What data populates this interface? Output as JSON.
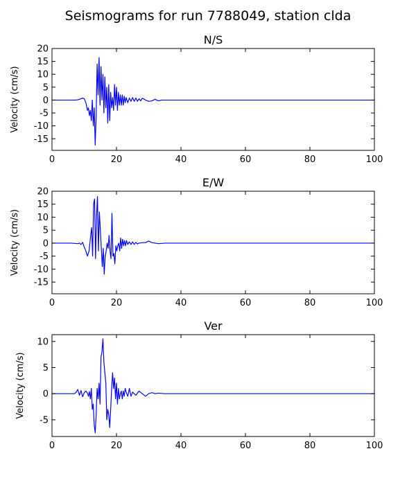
{
  "figure": {
    "suptitle": "Seismograms for run 7788049, station clda",
    "line_color": "#0000ff"
  },
  "chart_data": [
    {
      "type": "line",
      "title": "N/S",
      "xlabel": "",
      "ylabel": "Velocity (cm/s)",
      "xlim": [
        0,
        100
      ],
      "ylim": [
        -19.5,
        20
      ],
      "xticks": [
        0,
        20,
        40,
        60,
        80,
        100
      ],
      "yticks": [
        -15,
        -10,
        -5,
        0,
        5,
        10,
        15,
        20
      ],
      "grid": false,
      "series": [
        {
          "color": "#0000ff",
          "x": [
            0,
            7,
            8,
            9,
            9.5,
            10,
            10.5,
            11,
            11.3,
            11.6,
            11.9,
            12.2,
            12.5,
            12.8,
            13.1,
            13.4,
            13.7,
            14.0,
            14.3,
            14.6,
            14.9,
            15.2,
            15.5,
            15.8,
            16.1,
            16.4,
            16.7,
            17.0,
            17.3,
            17.6,
            17.9,
            18.2,
            18.5,
            18.8,
            19.1,
            19.4,
            19.7,
            20.0,
            20.3,
            20.6,
            20.9,
            21.2,
            21.5,
            21.8,
            22.1,
            22.4,
            22.7,
            23.0,
            23.5,
            24,
            24.5,
            25,
            25.5,
            26,
            26.5,
            27,
            27.5,
            28,
            28.5,
            29,
            30,
            31,
            32,
            33,
            34,
            35,
            37,
            40,
            50,
            60,
            70,
            80,
            90,
            100
          ],
          "y": [
            0,
            0,
            0.1,
            0.5,
            0.8,
            0.5,
            -1,
            -4,
            -3,
            -6,
            -4,
            -8,
            0,
            -10,
            -3,
            -17.5,
            -6,
            14,
            2,
            16.5,
            -2,
            13,
            0,
            10,
            -5,
            9,
            -3,
            5,
            -9,
            6,
            -8,
            3,
            -3,
            1,
            -4,
            6,
            -2,
            5,
            -4,
            3,
            -2,
            2,
            -2,
            2,
            -2,
            1.5,
            -1,
            1,
            -1,
            0.8,
            -0.5,
            1,
            -0.5,
            0.8,
            -0.5,
            0.5,
            -0.3,
            0.7,
            0.4,
            0,
            -0.5,
            -0.3,
            0.3,
            -0.3,
            0,
            0,
            0,
            0,
            0,
            0,
            0,
            0,
            0,
            0
          ]
        }
      ]
    },
    {
      "type": "line",
      "title": "E/W",
      "xlabel": "",
      "ylabel": "Velocity (cm/s)",
      "xlim": [
        0,
        100
      ],
      "ylim": [
        -19.5,
        20
      ],
      "xticks": [
        0,
        20,
        40,
        60,
        80,
        100
      ],
      "yticks": [
        -15,
        -10,
        -5,
        0,
        5,
        10,
        15,
        20
      ],
      "grid": false,
      "series": [
        {
          "color": "#0000ff",
          "x": [
            0,
            6,
            7,
            8,
            8.5,
            9,
            9.5,
            10,
            10.5,
            11,
            11.5,
            12,
            12.3,
            12.6,
            12.9,
            13.2,
            13.5,
            13.8,
            14.1,
            14.4,
            14.7,
            15.0,
            15.3,
            15.6,
            15.9,
            16.2,
            16.5,
            16.8,
            17.1,
            17.4,
            17.7,
            18.0,
            18.3,
            18.6,
            18.9,
            19.2,
            19.5,
            19.8,
            20.1,
            20.4,
            20.7,
            21.0,
            21.3,
            21.6,
            21.9,
            22.2,
            22.5,
            22.8,
            23.1,
            23.5,
            24,
            24.5,
            25,
            25.5,
            26,
            26.5,
            27,
            28,
            29,
            30,
            31,
            32,
            33,
            35,
            40,
            50,
            60,
            70,
            80,
            90,
            100
          ],
          "y": [
            0,
            0,
            -0.1,
            -0.2,
            0,
            -0.5,
            0.3,
            -1.5,
            -3,
            -5,
            -3,
            3,
            6,
            -5,
            15,
            17,
            -6,
            10,
            18,
            -3,
            12,
            5,
            -2,
            -9,
            -2,
            -12,
            -5,
            -3,
            0,
            -2,
            3,
            -3,
            -6,
            11.5,
            -5,
            -4,
            -8,
            -1,
            -3,
            -1,
            0,
            -3,
            2,
            -2,
            1.5,
            -1,
            1,
            -1,
            1,
            -0.5,
            0.5,
            -0.5,
            0.5,
            -0.5,
            0.3,
            -0.3,
            0,
            0.2,
            0.2,
            0.8,
            0.2,
            0,
            -0.2,
            0,
            0,
            0,
            0,
            0,
            0,
            0,
            0
          ]
        }
      ]
    },
    {
      "type": "line",
      "title": "Ver",
      "xlabel": "",
      "ylabel": "Velocity (cm/s)",
      "xlim": [
        0,
        100
      ],
      "ylim": [
        -8.2,
        11.3
      ],
      "xticks": [
        0,
        20,
        40,
        60,
        80,
        100
      ],
      "yticks": [
        -5,
        0,
        5,
        10
      ],
      "grid": false,
      "series": [
        {
          "color": "#0000ff",
          "x": [
            0,
            6,
            7,
            7.5,
            8,
            8.5,
            9,
            9.5,
            10,
            10.5,
            11,
            11.3,
            11.6,
            11.9,
            12.2,
            12.5,
            12.8,
            13.1,
            13.4,
            13.7,
            14.0,
            14.3,
            14.6,
            14.9,
            15.2,
            15.5,
            15.8,
            16.1,
            16.4,
            16.7,
            17.0,
            17.3,
            17.6,
            17.9,
            18.2,
            18.5,
            18.8,
            19.1,
            19.4,
            19.7,
            20.0,
            20.3,
            20.6,
            20.9,
            21.2,
            21.5,
            21.8,
            22.1,
            22.4,
            22.7,
            23.0,
            23.5,
            24,
            24.5,
            25,
            26,
            27,
            28,
            29,
            30,
            31,
            32,
            33,
            35,
            40,
            50,
            60,
            70,
            80,
            90,
            100
          ],
          "y": [
            0,
            0,
            0,
            0.3,
            0.8,
            -0.3,
            0.6,
            -0.6,
            0.2,
            0.5,
            0.1,
            -0.5,
            0.4,
            -1,
            1,
            -3,
            -2,
            -6,
            -7.5,
            -4,
            1,
            -1,
            2,
            -2,
            7,
            8,
            10.5,
            6,
            4,
            2,
            -5,
            -3,
            -4,
            -6.5,
            -3,
            1,
            4,
            1,
            3,
            -1,
            2,
            -2,
            1,
            -1,
            0,
            0.5,
            -1,
            0.5,
            -0.5,
            1,
            0.3,
            -0.5,
            1,
            -0.5,
            0.3,
            -0.3,
            0.5,
            0,
            -0.5,
            0,
            0.2,
            0,
            0.1,
            0,
            0,
            0,
            0,
            0,
            0,
            0,
            0
          ]
        }
      ]
    }
  ]
}
